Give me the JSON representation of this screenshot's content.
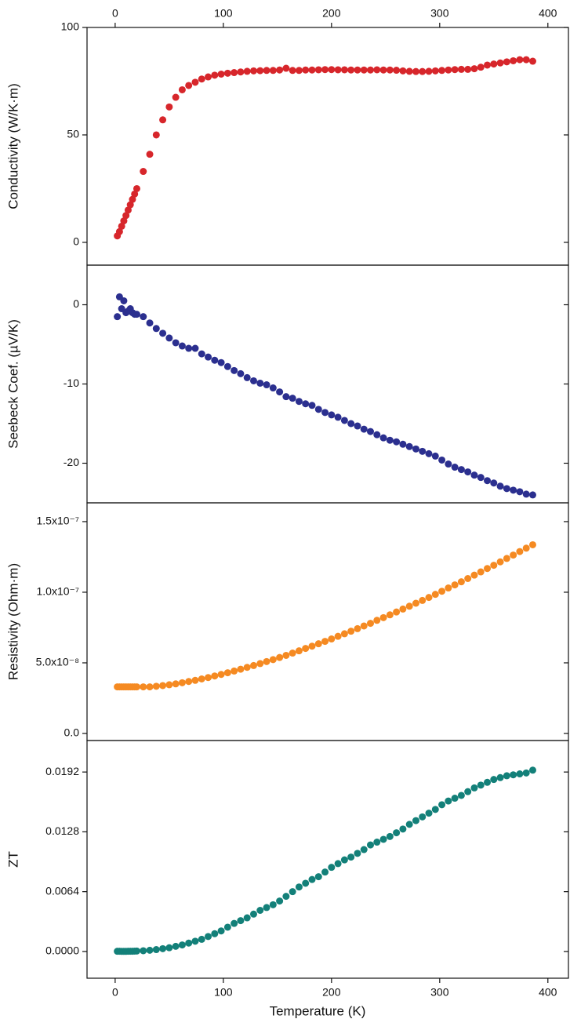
{
  "chart_data": {
    "type": "scatter",
    "xlabel": "Temperature (K)",
    "xlim": [
      -26,
      419
    ],
    "xticks": [
      0,
      100,
      200,
      300,
      400
    ],
    "x": [
      2,
      4,
      6,
      8,
      10,
      12,
      14,
      16,
      18,
      20,
      26,
      32,
      38,
      44,
      50,
      56,
      62,
      68,
      74,
      80,
      86,
      92,
      98,
      104,
      110,
      116,
      122,
      128,
      134,
      140,
      146,
      152,
      158,
      164,
      170,
      176,
      182,
      188,
      194,
      200,
      206,
      212,
      218,
      224,
      230,
      236,
      242,
      248,
      254,
      260,
      266,
      272,
      278,
      284,
      290,
      296,
      302,
      308,
      314,
      320,
      326,
      332,
      338,
      344,
      350,
      356,
      362,
      368,
      374,
      380,
      386
    ],
    "panels": [
      {
        "ylabel": "Conductivity (W/K·m)",
        "color": "#d7262b",
        "ylim": [
          -10.6,
          100
        ],
        "yticks": [
          0,
          50,
          100
        ],
        "values": [
          3,
          5,
          7.5,
          10,
          12.5,
          15,
          17.5,
          20,
          22.5,
          25,
          33,
          41,
          50,
          57,
          63,
          67.5,
          71,
          73,
          74.5,
          76,
          77,
          77.8,
          78.3,
          78.7,
          79,
          79.3,
          79.6,
          79.8,
          79.9,
          80,
          80,
          80.2,
          81,
          80,
          80,
          80.2,
          80.2,
          80.3,
          80.4,
          80.4,
          80.3,
          80.3,
          80.2,
          80.2,
          80.2,
          80.2,
          80.3,
          80.2,
          80.2,
          80.1,
          79.8,
          79.6,
          79.5,
          79.5,
          79.6,
          79.8,
          80,
          80.2,
          80.4,
          80.5,
          80.5,
          80.8,
          81.5,
          82.5,
          83,
          83.5,
          84,
          84.5,
          85,
          85,
          84.3
        ]
      },
      {
        "ylabel": "Seebeck Coef. (µV/K)",
        "color": "#2b2f8f",
        "ylim": [
          -25,
          5
        ],
        "yticks": [
          -20,
          -10,
          0
        ],
        "values": [
          -1.5,
          1,
          -0.5,
          0.5,
          -1,
          -0.8,
          -0.5,
          -1,
          -1.2,
          -1.2,
          -1.5,
          -2.3,
          -3,
          -3.6,
          -4.2,
          -4.8,
          -5.2,
          -5.5,
          -5.5,
          -6.2,
          -6.6,
          -7,
          -7.3,
          -7.8,
          -8.3,
          -8.7,
          -9.2,
          -9.6,
          -9.9,
          -10.1,
          -10.5,
          -11,
          -11.6,
          -11.8,
          -12.2,
          -12.5,
          -12.7,
          -13.2,
          -13.6,
          -13.9,
          -14.2,
          -14.6,
          -15,
          -15.3,
          -15.7,
          -16,
          -16.4,
          -16.8,
          -17.1,
          -17.3,
          -17.6,
          -17.9,
          -18.2,
          -18.5,
          -18.8,
          -19.1,
          -19.6,
          -20.1,
          -20.5,
          -20.8,
          -21.1,
          -21.5,
          -21.8,
          -22.2,
          -22.5,
          -22.9,
          -23.2,
          -23.4,
          -23.6,
          -23.9,
          -24
        ]
      },
      {
        "ylabel": "Resistivity (Ohm·m)",
        "color": "#f58a22",
        "ylim": [
          -5e-09,
          1.633e-07
        ],
        "yticks": [
          {
            "value": 0,
            "label": "0.0"
          },
          {
            "value": 5e-08,
            "label": "5.0x10⁻⁸"
          },
          {
            "value": 1e-07,
            "label": "1.0x10⁻⁷"
          },
          {
            "value": 1.5e-07,
            "label": "1.5x10⁻⁷"
          }
        ],
        "values": [
          3.3e-08,
          3.3e-08,
          3.3e-08,
          3.3e-08,
          3.3e-08,
          3.3e-08,
          3.3e-08,
          3.3e-08,
          3.3e-08,
          3.3e-08,
          3.3e-08,
          3.3e-08,
          3.34e-08,
          3.39e-08,
          3.45e-08,
          3.51e-08,
          3.59e-08,
          3.68e-08,
          3.76e-08,
          3.86e-08,
          3.96e-08,
          4.07e-08,
          4.18e-08,
          4.3e-08,
          4.42e-08,
          4.55e-08,
          4.68e-08,
          4.81e-08,
          4.95e-08,
          5.09e-08,
          5.23e-08,
          5.38e-08,
          5.53e-08,
          5.69e-08,
          5.85e-08,
          6.02e-08,
          6.18e-08,
          6.35e-08,
          6.52e-08,
          6.69e-08,
          6.88e-08,
          7.06e-08,
          7.24e-08,
          7.42e-08,
          7.61e-08,
          7.8e-08,
          8.01e-08,
          8.2e-08,
          8.4e-08,
          8.6e-08,
          8.81e-08,
          9.01e-08,
          9.22e-08,
          9.42e-08,
          9.63e-08,
          9.85e-08,
          1.007e-07,
          1.03e-07,
          1.052e-07,
          1.074e-07,
          1.097e-07,
          1.121e-07,
          1.144e-07,
          1.168e-07,
          1.191e-07,
          1.215e-07,
          1.239e-07,
          1.263e-07,
          1.288e-07,
          1.312e-07,
          1.336e-07
        ]
      },
      {
        "ylabel": "ZT",
        "color": "#138079",
        "ylim": [
          -0.00286,
          0.02257
        ],
        "yticks": [
          {
            "value": 0,
            "label": "0.0000"
          },
          {
            "value": 0.0064,
            "label": "0.0064"
          },
          {
            "value": 0.0128,
            "label": "0.0128"
          },
          {
            "value": 0.0192,
            "label": "0.0192"
          }
        ],
        "values": [
          2e-05,
          2e-05,
          1e-05,
          1e-05,
          1e-05,
          2e-05,
          3e-05,
          3e-05,
          4e-05,
          5e-05,
          8e-05,
          0.00013,
          0.0002,
          0.0003,
          0.0004,
          0.00055,
          0.0007,
          0.0009,
          0.0011,
          0.0013,
          0.0016,
          0.0019,
          0.0022,
          0.0026,
          0.003,
          0.0033,
          0.0036,
          0.004,
          0.0044,
          0.0047,
          0.005,
          0.0054,
          0.0059,
          0.0064,
          0.0069,
          0.0073,
          0.0077,
          0.008,
          0.0085,
          0.009,
          0.0094,
          0.0098,
          0.0101,
          0.0105,
          0.0109,
          0.0114,
          0.0117,
          0.012,
          0.0123,
          0.0127,
          0.0131,
          0.0136,
          0.014,
          0.0144,
          0.0148,
          0.0152,
          0.0157,
          0.0161,
          0.0164,
          0.0167,
          0.0171,
          0.0175,
          0.0178,
          0.0181,
          0.0184,
          0.0186,
          0.0188,
          0.0189,
          0.019,
          0.0191,
          0.0194
        ]
      }
    ]
  }
}
